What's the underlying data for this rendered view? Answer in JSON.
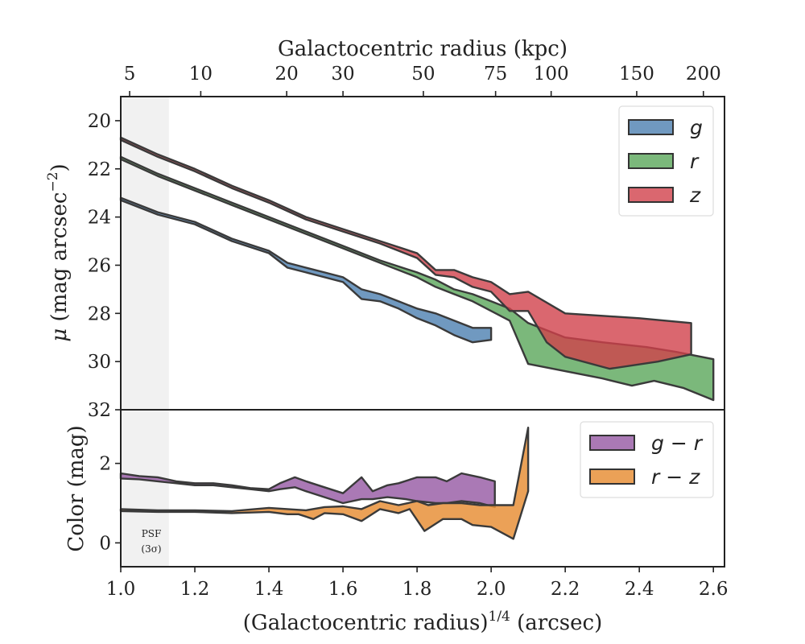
{
  "chart_data": [
    {
      "type": "area",
      "panel": "surface-brightness",
      "ylabel_prefix": "μ",
      "ylabel_main": " (mag arcsec",
      "ylabel_sup": "−2",
      "ylabel_end": ")",
      "top_xlabel": "Galactocentric radius (kpc)",
      "top_ticks": [
        "5",
        "10",
        "20",
        "30",
        "50",
        "75",
        "100",
        "150",
        "200"
      ],
      "top_tick_positions": [
        1.024,
        1.216,
        1.448,
        1.6,
        1.817,
        2.012,
        2.162,
        2.393,
        2.573
      ],
      "xlim": [
        1.0,
        2.63
      ],
      "ylim": [
        32,
        19
      ],
      "y_inverted": true,
      "yticks": [
        20,
        22,
        24,
        26,
        28,
        30,
        32
      ],
      "psf_region": [
        1.0,
        1.13
      ],
      "legend_position": "top-right",
      "series": [
        {
          "name": "g",
          "color": "#4c7fb0",
          "upper": [
            [
              1.0,
              23.2
            ],
            [
              1.1,
              23.8
            ],
            [
              1.2,
              24.2
            ],
            [
              1.3,
              24.9
            ],
            [
              1.4,
              25.4
            ],
            [
              1.45,
              25.9
            ],
            [
              1.5,
              26.1
            ],
            [
              1.55,
              26.3
            ],
            [
              1.6,
              26.5
            ],
            [
              1.65,
              27.0
            ],
            [
              1.7,
              27.2
            ],
            [
              1.75,
              27.5
            ],
            [
              1.8,
              27.8
            ],
            [
              1.85,
              28.0
            ],
            [
              1.9,
              28.3
            ],
            [
              1.95,
              28.6
            ],
            [
              2.0,
              28.6
            ]
          ],
          "lower": [
            [
              1.0,
              23.3
            ],
            [
              1.1,
              23.9
            ],
            [
              1.2,
              24.3
            ],
            [
              1.3,
              25.0
            ],
            [
              1.4,
              25.5
            ],
            [
              1.45,
              26.1
            ],
            [
              1.5,
              26.3
            ],
            [
              1.55,
              26.5
            ],
            [
              1.6,
              26.7
            ],
            [
              1.65,
              27.4
            ],
            [
              1.7,
              27.5
            ],
            [
              1.75,
              27.8
            ],
            [
              1.8,
              28.2
            ],
            [
              1.85,
              28.5
            ],
            [
              1.9,
              28.9
            ],
            [
              1.95,
              29.2
            ],
            [
              2.0,
              29.1
            ]
          ]
        },
        {
          "name": "r",
          "color": "#5aa65a",
          "upper": [
            [
              1.0,
              21.5
            ],
            [
              1.1,
              22.2
            ],
            [
              1.2,
              22.8
            ],
            [
              1.3,
              23.4
            ],
            [
              1.4,
              24.0
            ],
            [
              1.5,
              24.6
            ],
            [
              1.6,
              25.2
            ],
            [
              1.7,
              25.8
            ],
            [
              1.8,
              26.3
            ],
            [
              1.85,
              26.6
            ],
            [
              1.9,
              27.0
            ],
            [
              1.95,
              27.2
            ],
            [
              2.0,
              27.5
            ],
            [
              2.05,
              27.8
            ],
            [
              2.1,
              28.4
            ],
            [
              2.2,
              29.0
            ],
            [
              2.3,
              29.2
            ],
            [
              2.42,
              29.4
            ],
            [
              2.5,
              29.6
            ],
            [
              2.6,
              29.9
            ]
          ],
          "lower": [
            [
              1.0,
              21.6
            ],
            [
              1.1,
              22.3
            ],
            [
              1.2,
              22.9
            ],
            [
              1.3,
              23.5
            ],
            [
              1.4,
              24.1
            ],
            [
              1.5,
              24.7
            ],
            [
              1.6,
              25.3
            ],
            [
              1.7,
              25.9
            ],
            [
              1.8,
              26.5
            ],
            [
              1.85,
              26.9
            ],
            [
              1.9,
              27.2
            ],
            [
              1.95,
              27.5
            ],
            [
              2.0,
              27.9
            ],
            [
              2.05,
              28.3
            ],
            [
              2.1,
              30.1
            ],
            [
              2.2,
              30.4
            ],
            [
              2.3,
              30.7
            ],
            [
              2.38,
              31.0
            ],
            [
              2.44,
              30.8
            ],
            [
              2.52,
              31.1
            ],
            [
              2.6,
              31.6
            ]
          ]
        },
        {
          "name": "z",
          "color": "#d1414b",
          "upper": [
            [
              1.0,
              20.7
            ],
            [
              1.1,
              21.4
            ],
            [
              1.2,
              22.0
            ],
            [
              1.3,
              22.7
            ],
            [
              1.4,
              23.3
            ],
            [
              1.5,
              24.0
            ],
            [
              1.6,
              24.5
            ],
            [
              1.7,
              25.0
            ],
            [
              1.8,
              25.5
            ],
            [
              1.85,
              26.2
            ],
            [
              1.9,
              26.2
            ],
            [
              1.95,
              26.5
            ],
            [
              2.0,
              26.7
            ],
            [
              2.05,
              27.2
            ],
            [
              2.1,
              27.1
            ],
            [
              2.2,
              28.0
            ],
            [
              2.3,
              28.1
            ],
            [
              2.4,
              28.2
            ],
            [
              2.54,
              28.4
            ]
          ],
          "lower": [
            [
              1.0,
              20.8
            ],
            [
              1.1,
              21.5
            ],
            [
              1.2,
              22.1
            ],
            [
              1.3,
              22.8
            ],
            [
              1.4,
              23.4
            ],
            [
              1.5,
              24.1
            ],
            [
              1.6,
              24.6
            ],
            [
              1.7,
              25.1
            ],
            [
              1.8,
              25.7
            ],
            [
              1.85,
              26.4
            ],
            [
              1.9,
              26.5
            ],
            [
              1.95,
              26.9
            ],
            [
              2.0,
              27.1
            ],
            [
              2.05,
              27.9
            ],
            [
              2.1,
              27.9
            ],
            [
              2.15,
              29.2
            ],
            [
              2.2,
              29.8
            ],
            [
              2.32,
              30.3
            ],
            [
              2.45,
              30.0
            ],
            [
              2.54,
              29.7
            ]
          ]
        }
      ]
    },
    {
      "type": "area",
      "panel": "color",
      "ylabel": "Color (mag)",
      "xlabel_main": "(Galactocentric radius)",
      "xlabel_sup": "1/4",
      "xlabel_end": " (arcsec)",
      "xlim": [
        1.0,
        2.63
      ],
      "xticks": [
        "1.0",
        "1.2",
        "1.4",
        "1.6",
        "1.8",
        "2.0",
        "2.2",
        "2.4",
        "2.6"
      ],
      "ylim": [
        -0.6,
        3.35
      ],
      "yticks": [
        "0",
        "2"
      ],
      "psf_region": [
        1.0,
        1.13
      ],
      "psf_label": [
        "PSF",
        "(3σ)"
      ],
      "legend_position": "top-right",
      "series": [
        {
          "name": "g − r",
          "color": "#9b62a8",
          "upper": [
            [
              1.0,
              1.75
            ],
            [
              1.05,
              1.68
            ],
            [
              1.1,
              1.65
            ],
            [
              1.15,
              1.55
            ],
            [
              1.2,
              1.5
            ],
            [
              1.25,
              1.5
            ],
            [
              1.3,
              1.45
            ],
            [
              1.35,
              1.38
            ],
            [
              1.4,
              1.35
            ],
            [
              1.43,
              1.5
            ],
            [
              1.47,
              1.65
            ],
            [
              1.5,
              1.55
            ],
            [
              1.55,
              1.4
            ],
            [
              1.6,
              1.25
            ],
            [
              1.65,
              1.65
            ],
            [
              1.68,
              1.3
            ],
            [
              1.72,
              1.45
            ],
            [
              1.75,
              1.5
            ],
            [
              1.8,
              1.65
            ],
            [
              1.85,
              1.65
            ],
            [
              1.88,
              1.55
            ],
            [
              1.92,
              1.75
            ],
            [
              1.97,
              1.65
            ],
            [
              2.01,
              1.55
            ]
          ],
          "lower": [
            [
              2.01,
              0.9
            ],
            [
              1.97,
              1.0
            ],
            [
              1.92,
              1.05
            ],
            [
              1.88,
              1.0
            ],
            [
              1.85,
              1.0
            ],
            [
              1.8,
              1.05
            ],
            [
              1.77,
              1.1
            ],
            [
              1.72,
              1.15
            ],
            [
              1.68,
              1.1
            ],
            [
              1.65,
              1.1
            ],
            [
              1.6,
              1.0
            ],
            [
              1.55,
              1.15
            ],
            [
              1.5,
              1.3
            ],
            [
              1.47,
              1.4
            ],
            [
              1.43,
              1.35
            ],
            [
              1.4,
              1.3
            ],
            [
              1.35,
              1.35
            ],
            [
              1.3,
              1.4
            ],
            [
              1.25,
              1.45
            ],
            [
              1.2,
              1.45
            ],
            [
              1.15,
              1.5
            ],
            [
              1.1,
              1.55
            ],
            [
              1.05,
              1.6
            ],
            [
              1.0,
              1.62
            ]
          ]
        },
        {
          "name": "r − z",
          "color": "#e8903a",
          "upper": [
            [
              1.0,
              0.85
            ],
            [
              1.1,
              0.82
            ],
            [
              1.2,
              0.82
            ],
            [
              1.3,
              0.8
            ],
            [
              1.4,
              0.88
            ],
            [
              1.45,
              0.85
            ],
            [
              1.5,
              0.82
            ],
            [
              1.55,
              0.9
            ],
            [
              1.6,
              0.92
            ],
            [
              1.65,
              0.85
            ],
            [
              1.7,
              1.05
            ],
            [
              1.75,
              0.95
            ],
            [
              1.8,
              1.05
            ],
            [
              1.83,
              0.95
            ],
            [
              1.87,
              1.0
            ],
            [
              1.92,
              1.0
            ],
            [
              1.97,
              0.95
            ],
            [
              2.0,
              0.95
            ],
            [
              2.06,
              0.95
            ],
            [
              2.1,
              2.9
            ]
          ],
          "lower": [
            [
              2.1,
              1.3
            ],
            [
              2.06,
              0.1
            ],
            [
              2.0,
              0.4
            ],
            [
              1.95,
              0.45
            ],
            [
              1.92,
              0.6
            ],
            [
              1.87,
              0.6
            ],
            [
              1.82,
              0.3
            ],
            [
              1.78,
              0.85
            ],
            [
              1.75,
              0.75
            ],
            [
              1.7,
              0.85
            ],
            [
              1.65,
              0.55
            ],
            [
              1.6,
              0.72
            ],
            [
              1.55,
              0.75
            ],
            [
              1.52,
              0.6
            ],
            [
              1.48,
              0.72
            ],
            [
              1.45,
              0.72
            ],
            [
              1.4,
              0.78
            ],
            [
              1.3,
              0.75
            ],
            [
              1.2,
              0.78
            ],
            [
              1.1,
              0.78
            ],
            [
              1.0,
              0.8
            ]
          ]
        }
      ]
    }
  ]
}
